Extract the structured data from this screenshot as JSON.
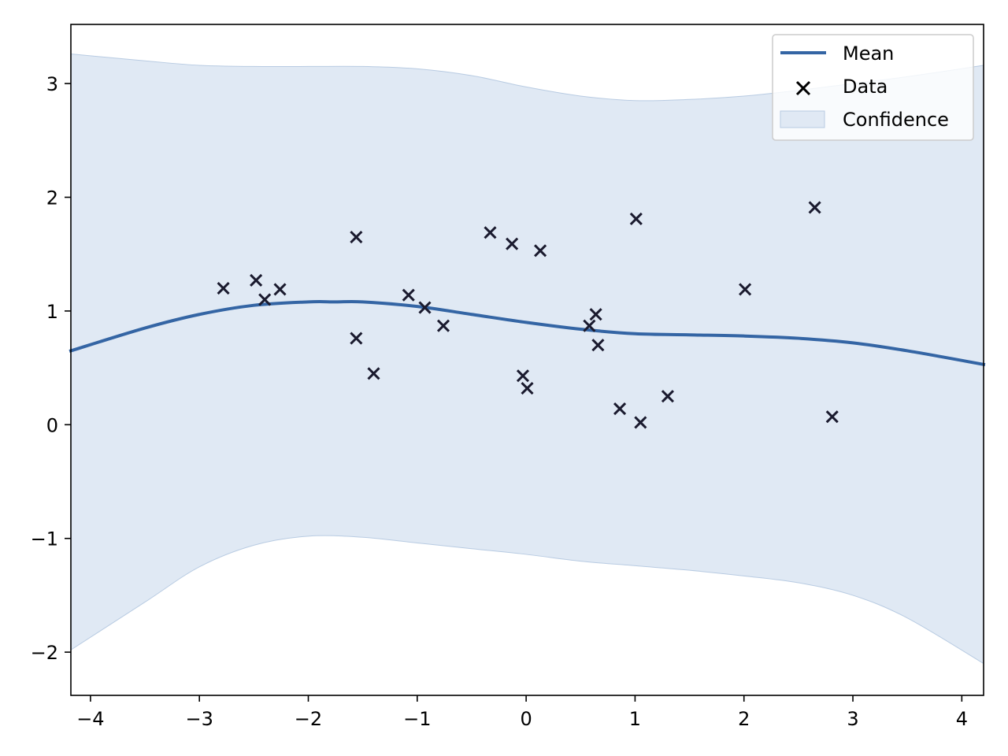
{
  "chart_data": {
    "type": "line",
    "title": "",
    "xlabel": "",
    "ylabel": "",
    "xlim": [
      -4.18,
      4.2
    ],
    "ylim": [
      -2.38,
      3.52
    ],
    "grid": false,
    "legend_placement": "top-right",
    "x_ticks": [
      -4,
      -3,
      -2,
      -1,
      0,
      1,
      2,
      3,
      4
    ],
    "x_tick_labels": [
      "−4",
      "−3",
      "−2",
      "−1",
      "0",
      "1",
      "2",
      "3",
      "4"
    ],
    "y_ticks": [
      -2,
      -1,
      0,
      1,
      2,
      3
    ],
    "y_tick_labels": [
      "−2",
      "−1",
      "0",
      "1",
      "2",
      "3"
    ],
    "colors": {
      "mean": "#3465a4",
      "data": "#1a1a2e",
      "band_fill": "#e0e9f4",
      "band_edge": "#b8cbe2"
    },
    "series": [
      {
        "name": "Mean",
        "kind": "line",
        "x": [
          -4.18,
          -3.5,
          -3.0,
          -2.5,
          -2.0,
          -1.75,
          -1.5,
          -1.0,
          -0.5,
          0.0,
          0.5,
          1.0,
          1.5,
          2.0,
          2.5,
          3.0,
          3.5,
          4.2
        ],
        "y": [
          0.65,
          0.85,
          0.97,
          1.05,
          1.08,
          1.08,
          1.08,
          1.04,
          0.97,
          0.9,
          0.84,
          0.8,
          0.79,
          0.78,
          0.76,
          0.72,
          0.65,
          0.53
        ]
      },
      {
        "name": "Data",
        "kind": "scatter",
        "points": [
          [
            -2.78,
            1.2
          ],
          [
            -2.48,
            1.27
          ],
          [
            -2.4,
            1.1
          ],
          [
            -2.26,
            1.19
          ],
          [
            -1.56,
            1.65
          ],
          [
            -1.56,
            0.76
          ],
          [
            -1.4,
            0.45
          ],
          [
            -1.08,
            1.14
          ],
          [
            -0.93,
            1.03
          ],
          [
            -0.76,
            0.87
          ],
          [
            -0.33,
            1.69
          ],
          [
            -0.13,
            1.59
          ],
          [
            0.13,
            1.53
          ],
          [
            -0.03,
            0.43
          ],
          [
            0.01,
            0.32
          ],
          [
            0.58,
            0.87
          ],
          [
            0.64,
            0.97
          ],
          [
            0.66,
            0.7
          ],
          [
            0.86,
            0.14
          ],
          [
            1.05,
            0.02
          ],
          [
            1.3,
            0.25
          ],
          [
            1.01,
            1.81
          ],
          [
            2.01,
            1.19
          ],
          [
            2.65,
            1.91
          ],
          [
            2.81,
            0.07
          ]
        ]
      },
      {
        "name": "Confidence",
        "kind": "band",
        "x": [
          -4.18,
          -3.5,
          -3.0,
          -2.5,
          -2.0,
          -1.5,
          -1.0,
          -0.5,
          0.0,
          0.5,
          1.0,
          1.5,
          2.0,
          2.5,
          3.0,
          3.5,
          4.2
        ],
        "upper": [
          3.26,
          3.2,
          3.16,
          3.15,
          3.15,
          3.15,
          3.13,
          3.07,
          2.97,
          2.89,
          2.85,
          2.86,
          2.89,
          2.94,
          3.0,
          3.06,
          3.16
        ],
        "lower": [
          -1.98,
          -1.56,
          -1.25,
          -1.06,
          -0.98,
          -0.99,
          -1.04,
          -1.09,
          -1.14,
          -1.2,
          -1.24,
          -1.28,
          -1.33,
          -1.39,
          -1.5,
          -1.7,
          -2.1
        ]
      }
    ]
  }
}
